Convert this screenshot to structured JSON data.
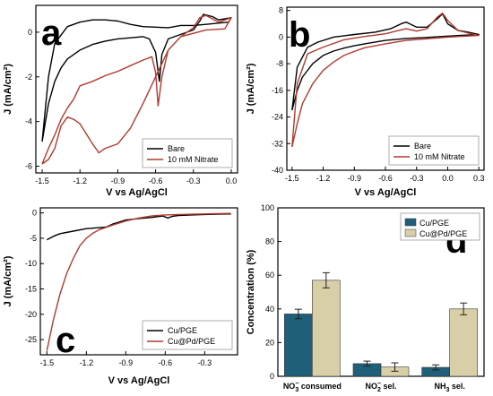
{
  "chart_data": [
    {
      "id": "a",
      "type": "line",
      "panel_label": "a",
      "xlabel": "V vs Ag/AgCl",
      "ylabel": "J (mA/cm²)",
      "xlim": [
        -1.55,
        0.05
      ],
      "ylim": [
        -6.3,
        1.2
      ],
      "xticks": [
        -1.5,
        -1.2,
        -0.9,
        -0.6,
        -0.3,
        0.0
      ],
      "xtick_labels": [
        "-1.5",
        "-1.2",
        "-0.9",
        "-0.6",
        "-0.3",
        "0.0"
      ],
      "yticks": [
        -6,
        -4,
        -2,
        0
      ],
      "ytick_labels": [
        "-6",
        "-4",
        "-2",
        "0"
      ],
      "legend_position": "bottom-right",
      "series": [
        {
          "name": "Bare",
          "color": "#000000",
          "points": [
            [
              -1.5,
              -4.9
            ],
            [
              -1.45,
              -3.2
            ],
            [
              -1.4,
              -2.2
            ],
            [
              -1.35,
              -1.6
            ],
            [
              -1.3,
              -1.2
            ],
            [
              -1.2,
              -0.8
            ],
            [
              -1.1,
              -0.55
            ],
            [
              -1.0,
              -0.4
            ],
            [
              -0.9,
              -0.3
            ],
            [
              -0.8,
              -0.25
            ],
            [
              -0.7,
              -0.2
            ],
            [
              -0.65,
              -0.3
            ],
            [
              -0.6,
              -0.9
            ],
            [
              -0.57,
              -2.2
            ],
            [
              -0.55,
              -1.0
            ],
            [
              -0.5,
              -0.3
            ],
            [
              -0.4,
              -0.1
            ],
            [
              -0.3,
              0.1
            ],
            [
              -0.25,
              0.5
            ],
            [
              -0.22,
              0.8
            ],
            [
              -0.15,
              0.7
            ],
            [
              -0.1,
              0.55
            ],
            [
              0.0,
              0.65
            ],
            [
              -0.02,
              0.45
            ],
            [
              -0.2,
              0.35
            ],
            [
              -0.3,
              0.3
            ],
            [
              -0.4,
              0.3
            ],
            [
              -0.5,
              0.2
            ],
            [
              -0.7,
              0.25
            ],
            [
              -0.8,
              0.35
            ],
            [
              -0.9,
              0.5
            ],
            [
              -1.0,
              0.55
            ],
            [
              -1.1,
              0.55
            ],
            [
              -1.2,
              0.45
            ],
            [
              -1.3,
              0.25
            ],
            [
              -1.4,
              -0.5
            ],
            [
              -1.45,
              -2.0
            ],
            [
              -1.5,
              -4.9
            ]
          ]
        },
        {
          "name": "10 mM Nitrate",
          "color": "#b03a2e",
          "points": [
            [
              -1.5,
              -5.9
            ],
            [
              -1.45,
              -5.2
            ],
            [
              -1.4,
              -4.6
            ],
            [
              -1.35,
              -3.9
            ],
            [
              -1.3,
              -3.4
            ],
            [
              -1.25,
              -3.0
            ],
            [
              -1.2,
              -2.4
            ],
            [
              -1.1,
              -2.2
            ],
            [
              -1.0,
              -1.95
            ],
            [
              -0.9,
              -1.75
            ],
            [
              -0.8,
              -1.5
            ],
            [
              -0.7,
              -1.25
            ],
            [
              -0.63,
              -1.1
            ],
            [
              -0.6,
              -1.8
            ],
            [
              -0.58,
              -3.3
            ],
            [
              -0.55,
              -2.0
            ],
            [
              -0.5,
              -0.8
            ],
            [
              -0.4,
              -0.2
            ],
            [
              -0.3,
              0.2
            ],
            [
              -0.25,
              0.65
            ],
            [
              -0.2,
              0.75
            ],
            [
              -0.1,
              0.45
            ],
            [
              0.0,
              0.65
            ],
            [
              -0.05,
              0.15
            ],
            [
              -0.2,
              0.1
            ],
            [
              -0.4,
              -0.2
            ],
            [
              -0.5,
              -0.8
            ],
            [
              -0.6,
              -2.0
            ],
            [
              -0.7,
              -3.2
            ],
            [
              -0.8,
              -4.3
            ],
            [
              -0.9,
              -5.0
            ],
            [
              -1.0,
              -5.2
            ],
            [
              -1.05,
              -5.4
            ],
            [
              -1.1,
              -5.0
            ],
            [
              -1.2,
              -4.1
            ],
            [
              -1.25,
              -3.9
            ],
            [
              -1.3,
              -3.8
            ],
            [
              -1.35,
              -4.2
            ],
            [
              -1.4,
              -5.2
            ],
            [
              -1.45,
              -5.7
            ],
            [
              -1.5,
              -5.9
            ]
          ]
        }
      ]
    },
    {
      "id": "b",
      "type": "line",
      "panel_label": "b",
      "xlabel": "V vs Ag/AgCl",
      "ylabel": "J (mA/cm²)",
      "xlim": [
        -1.55,
        0.35
      ],
      "ylim": [
        -40,
        9
      ],
      "xticks": [
        -1.5,
        -1.2,
        -0.9,
        -0.6,
        -0.3,
        0.0,
        0.3
      ],
      "xtick_labels": [
        "-1.5",
        "-1.2",
        "-0.9",
        "-0.6",
        "-0.3",
        "0.0",
        "0.3"
      ],
      "yticks": [
        -40,
        -32,
        -24,
        -16,
        -8,
        0,
        8
      ],
      "ytick_labels": [
        "-40",
        "-32",
        "-24",
        "-16",
        "-8",
        "0",
        "8"
      ],
      "legend_position": "bottom-right",
      "series": [
        {
          "name": "Bare",
          "color": "#000000",
          "points": [
            [
              -1.5,
              -22
            ],
            [
              -1.45,
              -16
            ],
            [
              -1.4,
              -12
            ],
            [
              -1.3,
              -8
            ],
            [
              -1.2,
              -5.5
            ],
            [
              -1.1,
              -4.2
            ],
            [
              -1.0,
              -3.3
            ],
            [
              -0.9,
              -2.6
            ],
            [
              -0.8,
              -2.0
            ],
            [
              -0.6,
              -1.0
            ],
            [
              -0.4,
              -0.4
            ],
            [
              -0.2,
              -0.1
            ],
            [
              0.0,
              0.3
            ],
            [
              0.3,
              0.8
            ],
            [
              0.2,
              1.5
            ],
            [
              0.1,
              2.0
            ],
            [
              0.0,
              4.0
            ],
            [
              -0.05,
              7.0
            ],
            [
              -0.1,
              5.5
            ],
            [
              -0.2,
              3.0
            ],
            [
              -0.3,
              3.0
            ],
            [
              -0.4,
              4.5
            ],
            [
              -0.45,
              4.0
            ],
            [
              -0.55,
              2.5
            ],
            [
              -0.7,
              1.5
            ],
            [
              -0.9,
              0.8
            ],
            [
              -1.1,
              0.0
            ],
            [
              -1.25,
              -1.5
            ],
            [
              -1.35,
              -3.0
            ],
            [
              -1.45,
              -9.0
            ],
            [
              -1.5,
              -22
            ]
          ]
        },
        {
          "name": "10 mM Nitrate",
          "color": "#b03a2e",
          "points": [
            [
              -1.5,
              -33
            ],
            [
              -1.45,
              -26
            ],
            [
              -1.4,
              -20
            ],
            [
              -1.3,
              -14
            ],
            [
              -1.2,
              -10
            ],
            [
              -1.1,
              -7.5
            ],
            [
              -1.0,
              -5.5
            ],
            [
              -0.9,
              -4.3
            ],
            [
              -0.8,
              -3.2
            ],
            [
              -0.6,
              -2.0
            ],
            [
              -0.4,
              -1.0
            ],
            [
              -0.2,
              -0.5
            ],
            [
              0.0,
              0.0
            ],
            [
              0.3,
              0.5
            ],
            [
              0.2,
              1.2
            ],
            [
              0.1,
              2.0
            ],
            [
              0.0,
              5.0
            ],
            [
              -0.05,
              7.2
            ],
            [
              -0.1,
              6.0
            ],
            [
              -0.2,
              2.5
            ],
            [
              -0.3,
              1.8
            ],
            [
              -0.4,
              2.5
            ],
            [
              -0.45,
              2.2
            ],
            [
              -0.6,
              1.0
            ],
            [
              -0.8,
              0.2
            ],
            [
              -1.0,
              -0.8
            ],
            [
              -1.2,
              -3.0
            ],
            [
              -1.35,
              -5.0
            ],
            [
              -1.45,
              -14.0
            ],
            [
              -1.5,
              -33
            ]
          ]
        }
      ]
    },
    {
      "id": "c",
      "type": "line",
      "panel_label": "c",
      "xlabel": "V vs Ag/AgCl",
      "ylabel": "J (mA/cm²)",
      "xlim": [
        -1.55,
        -0.05
      ],
      "ylim": [
        -28,
        1
      ],
      "xticks": [
        -1.5,
        -1.2,
        -0.9,
        -0.6,
        -0.3
      ],
      "xtick_labels": [
        "-1.5",
        "-1.2",
        "-0.9",
        "-0.6",
        "-0.3"
      ],
      "yticks": [
        -25,
        -20,
        -15,
        -10,
        -5,
        0
      ],
      "ytick_labels": [
        "-25",
        "-20",
        "-15",
        "-10",
        "-5",
        "0"
      ],
      "legend_position": "bottom-right",
      "series": [
        {
          "name": "Cu/PGE",
          "color": "#000000",
          "points": [
            [
              -1.5,
              -5.3
            ],
            [
              -1.45,
              -4.6
            ],
            [
              -1.4,
              -4.1
            ],
            [
              -1.3,
              -3.6
            ],
            [
              -1.2,
              -3.1
            ],
            [
              -1.1,
              -2.9
            ],
            [
              -1.05,
              -2.8
            ],
            [
              -1.0,
              -2.2
            ],
            [
              -0.9,
              -1.4
            ],
            [
              -0.8,
              -1.1
            ],
            [
              -0.7,
              -0.9
            ],
            [
              -0.62,
              -0.6
            ],
            [
              -0.58,
              -1.0
            ],
            [
              -0.55,
              -0.7
            ],
            [
              -0.5,
              -0.5
            ],
            [
              -0.4,
              -0.4
            ],
            [
              -0.3,
              -0.3
            ],
            [
              -0.2,
              -0.25
            ],
            [
              -0.1,
              -0.2
            ]
          ]
        },
        {
          "name": "Cu@Pd/PGE",
          "color": "#b03a2e",
          "points": [
            [
              -1.5,
              -27.2
            ],
            [
              -1.45,
              -21
            ],
            [
              -1.4,
              -16
            ],
            [
              -1.35,
              -12
            ],
            [
              -1.3,
              -9.0
            ],
            [
              -1.25,
              -6.5
            ],
            [
              -1.2,
              -5.0
            ],
            [
              -1.15,
              -4.0
            ],
            [
              -1.1,
              -3.3
            ],
            [
              -1.0,
              -2.4
            ],
            [
              -0.9,
              -1.6
            ],
            [
              -0.8,
              -1.0
            ],
            [
              -0.7,
              -0.6
            ],
            [
              -0.6,
              -0.4
            ],
            [
              -0.5,
              -0.3
            ],
            [
              -0.4,
              -0.25
            ],
            [
              -0.3,
              -0.2
            ],
            [
              -0.2,
              -0.15
            ],
            [
              -0.1,
              -0.1
            ]
          ]
        }
      ]
    },
    {
      "id": "d",
      "type": "bar",
      "panel_label": "d",
      "ylabel": "Concentration (%)",
      "ylim": [
        0,
        100
      ],
      "yticks": [
        0,
        20,
        40,
        60,
        80,
        100
      ],
      "ytick_labels": [
        "0",
        "20",
        "40",
        "60",
        "80",
        "100"
      ],
      "categories": [
        {
          "main": "NO",
          "sub": "3",
          "sup": "−",
          "rest": " consumed"
        },
        {
          "main": "NO",
          "sub": "2",
          "sup": "−",
          "rest": " sel."
        },
        {
          "main": "NH",
          "sub": "3",
          "sup": "",
          "rest": " sel."
        }
      ],
      "legend_position": "top-right",
      "series": [
        {
          "name": "Cu/PGE",
          "color": "#1f5f7a",
          "values": [
            37,
            7.5,
            5.3
          ],
          "errors": [
            2.8,
            1.5,
            1.5
          ]
        },
        {
          "name": "Cu@Pd/PGE",
          "color": "#d8cfa8",
          "values": [
            57,
            5.5,
            40
          ],
          "errors": [
            4.5,
            2.5,
            3.5
          ]
        }
      ]
    }
  ]
}
